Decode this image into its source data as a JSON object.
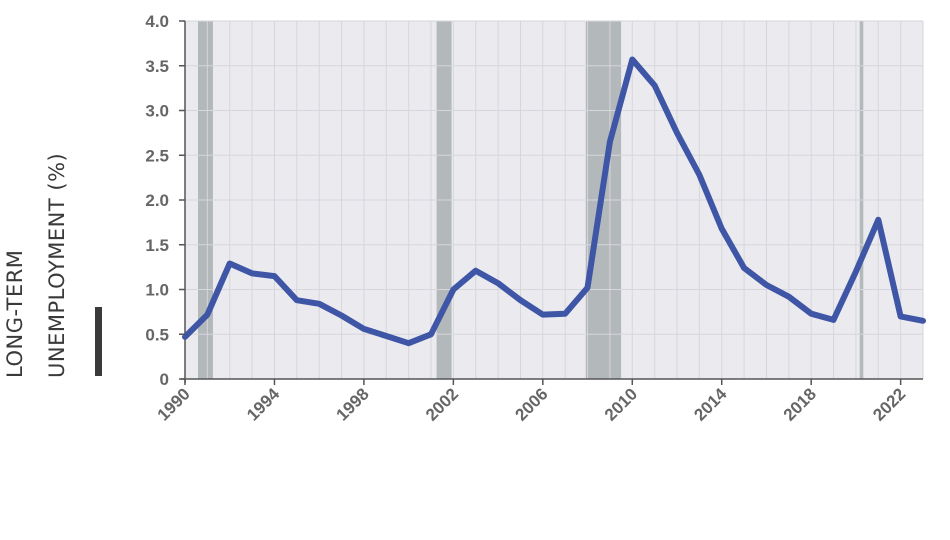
{
  "chart_data": {
    "type": "line",
    "title": "",
    "xlabel": "",
    "ylabel_lines": [
      "LONG-TERM",
      "UNEMPLOYMENT (%)"
    ],
    "xlim": [
      1990,
      2023
    ],
    "ylim": [
      0,
      4.0
    ],
    "x_ticks": [
      "1990",
      "1994",
      "1998",
      "2002",
      "2006",
      "2010",
      "2014",
      "2018",
      "2022"
    ],
    "y_ticks": [
      "0",
      "0.5",
      "1.0",
      "1.5",
      "2.0",
      "2.5",
      "3.0",
      "3.5",
      "4.0"
    ],
    "grid": true,
    "line_color": "#3f56a6",
    "plot_background": "#ebebef",
    "recession_color": "#b3b8bb",
    "recessions": [
      {
        "start": 1990.58,
        "end": 1991.25
      },
      {
        "start": 2001.25,
        "end": 2001.92
      },
      {
        "start": 2007.92,
        "end": 2009.5
      },
      {
        "start": 2020.17,
        "end": 2020.33
      }
    ],
    "series": [
      {
        "values": [
          [
            1990,
            0.47
          ],
          [
            1991,
            0.72
          ],
          [
            1992,
            1.29
          ],
          [
            1993,
            1.18
          ],
          [
            1994,
            1.15
          ],
          [
            1995,
            0.88
          ],
          [
            1996,
            0.84
          ],
          [
            1997,
            0.71
          ],
          [
            1998,
            0.56
          ],
          [
            1999,
            0.48
          ],
          [
            2000,
            0.4
          ],
          [
            2001,
            0.5
          ],
          [
            2002,
            1.0
          ],
          [
            2003,
            1.21
          ],
          [
            2004,
            1.07
          ],
          [
            2005,
            0.88
          ],
          [
            2006,
            0.72
          ],
          [
            2007,
            0.73
          ],
          [
            2008,
            1.02
          ],
          [
            2009,
            2.65
          ],
          [
            2010,
            3.57
          ],
          [
            2011,
            3.28
          ],
          [
            2012,
            2.75
          ],
          [
            2013,
            2.28
          ],
          [
            2014,
            1.68
          ],
          [
            2015,
            1.24
          ],
          [
            2016,
            1.05
          ],
          [
            2017,
            0.92
          ],
          [
            2018,
            0.73
          ],
          [
            2019,
            0.66
          ],
          [
            2020,
            1.2
          ],
          [
            2021,
            1.78
          ],
          [
            2022,
            0.7
          ],
          [
            2023,
            0.65
          ]
        ]
      }
    ]
  }
}
